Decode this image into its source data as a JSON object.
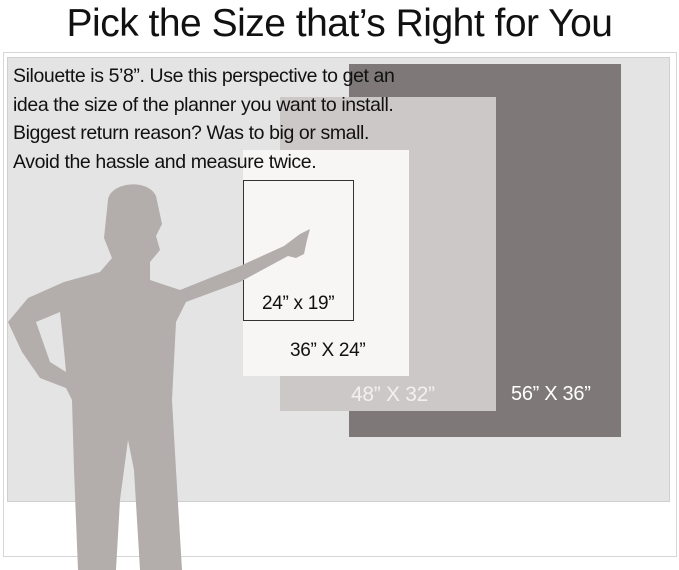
{
  "title": "Pick the Size that’s Right for You",
  "description": [
    "Silouette is 5’8”. Use this perspective to get an",
    "idea the size of the planner you want to install.",
    "Biggest return reason? Was to big or small.",
    "Avoid the hassle and measure twice."
  ],
  "sizes": {
    "s24": "24” x 19”",
    "s36": "36” X 24”",
    "s48": "48” X 32”",
    "s56": "56” X 36”"
  },
  "colors": {
    "background": "#e4e4e4",
    "size56": "#7e7878",
    "size48": "#cdc8c8",
    "size36": "#f8f6f4",
    "silhouette": "#b3adac"
  }
}
